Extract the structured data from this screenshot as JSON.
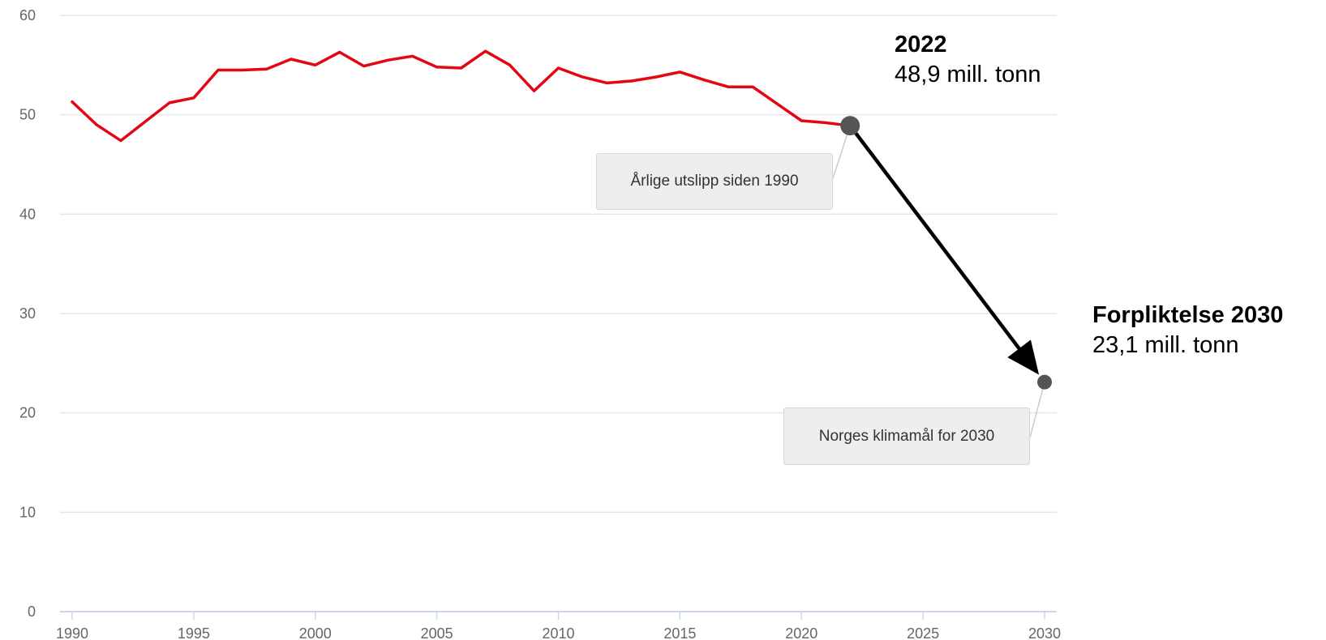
{
  "chart_data": {
    "type": "line",
    "ylim": [
      0,
      60
    ],
    "xlim": [
      1990,
      2030
    ],
    "y_ticks": [
      "0",
      "10",
      "20",
      "30",
      "40",
      "50",
      "60"
    ],
    "x_ticks": [
      "1990",
      "1995",
      "2000",
      "2005",
      "2010",
      "2015",
      "2020",
      "2025",
      "2030"
    ],
    "grid": "horizontal",
    "series": [
      {
        "color": "#e30613",
        "x": [
          1990,
          1991,
          1992,
          1993,
          1994,
          1995,
          1996,
          1997,
          1998,
          1999,
          2000,
          2001,
          2002,
          2003,
          2004,
          2005,
          2006,
          2007,
          2008,
          2009,
          2010,
          2011,
          2012,
          2013,
          2014,
          2015,
          2016,
          2017,
          2018,
          2019,
          2020,
          2021,
          2022
        ],
        "values": [
          51.3,
          49.0,
          47.4,
          49.3,
          51.2,
          51.7,
          54.5,
          54.5,
          54.6,
          55.6,
          55.0,
          56.3,
          54.9,
          55.5,
          55.9,
          54.8,
          54.7,
          56.4,
          55.0,
          52.4,
          54.7,
          53.8,
          53.2,
          53.4,
          53.8,
          54.3,
          53.5,
          52.8,
          52.8,
          51.1,
          49.4,
          49.2,
          48.9
        ]
      }
    ],
    "points": [
      {
        "x": 2022,
        "y": 48.9,
        "color": "#555555"
      },
      {
        "x": 2030,
        "y": 23.1,
        "color": "#555555"
      }
    ],
    "annotations": [
      {
        "title": "2022",
        "value": "48,9 mill. tonn"
      },
      {
        "title": "Forpliktelse 2030",
        "value": "23,1 mill. tonn"
      }
    ],
    "tooltips": [
      {
        "text": "Årlige utslipp siden 1990"
      },
      {
        "text": "Norges klimamål for 2030"
      }
    ],
    "arrow": {
      "from": [
        2022,
        48.9
      ],
      "to": [
        2030,
        23.1
      ],
      "color": "#000000"
    }
  }
}
